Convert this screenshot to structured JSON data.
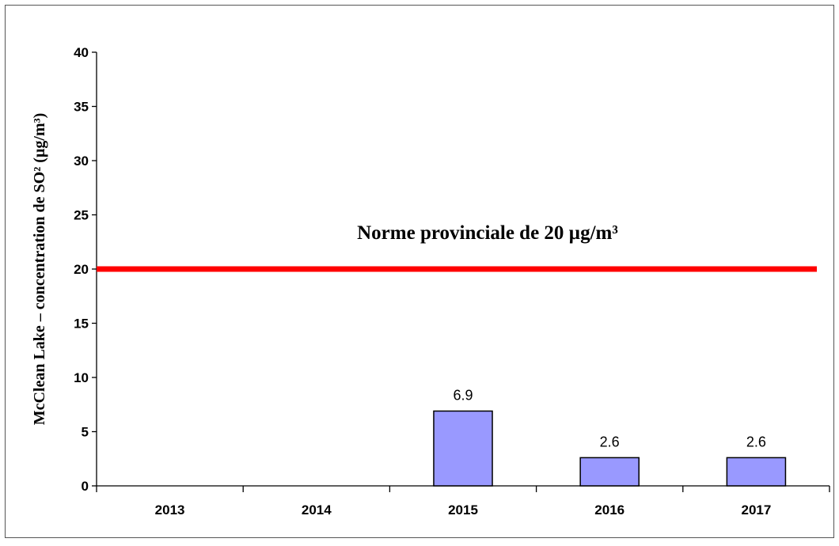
{
  "chart_data": {
    "type": "bar",
    "categories": [
      "2013",
      "2014",
      "2015",
      "2016",
      "2017"
    ],
    "values": [
      null,
      null,
      6.9,
      2.6,
      2.6
    ],
    "data_labels": [
      "",
      "",
      "6.9",
      "2.6",
      "2.6"
    ],
    "ylabel": "McClean Lake – concentration de SO² (µg/m³)",
    "xlabel": "",
    "ylim": [
      0,
      40
    ],
    "yticks": [
      0,
      5,
      10,
      15,
      20,
      25,
      30,
      35,
      40
    ],
    "ytick_labels": [
      "0",
      "5",
      "10",
      "15",
      "20",
      "25",
      "30",
      "35",
      "40"
    ],
    "reference_line": {
      "value": 20,
      "label": "Norme provinciale de 20 µg/m³",
      "color": "#ff0000"
    },
    "bar_color": "#9999ff",
    "grid": false
  }
}
